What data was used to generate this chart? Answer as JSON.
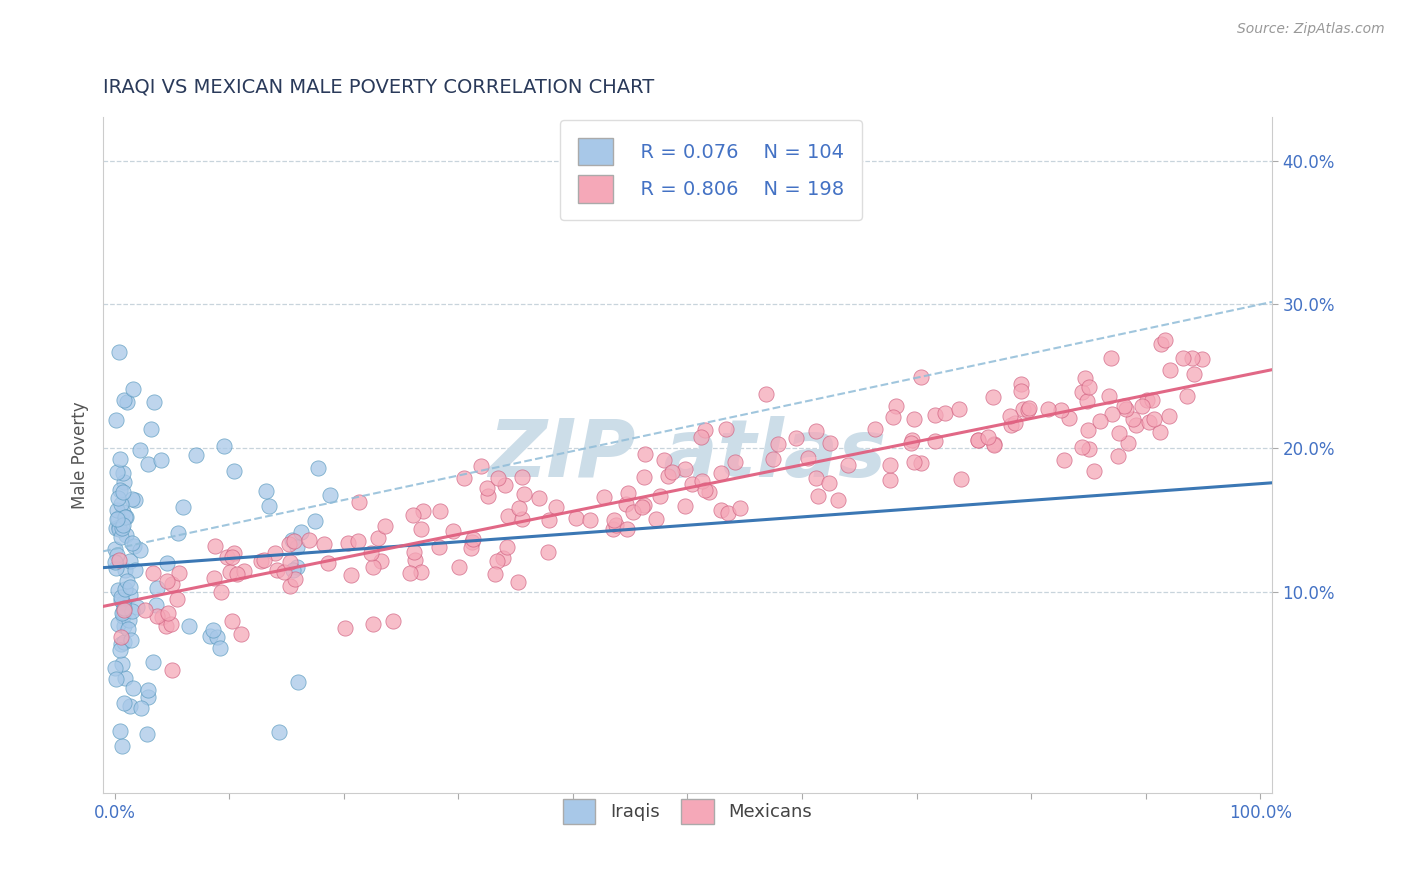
{
  "title": "IRAQI VS MEXICAN MALE POVERTY CORRELATION CHART",
  "source": "Source: ZipAtlas.com",
  "ylabel": "Male Poverty",
  "xlim": [
    -0.01,
    1.01
  ],
  "ylim": [
    -0.04,
    0.43
  ],
  "xtick_positions": [
    0.0,
    0.5,
    1.0
  ],
  "xtick_labels": [
    "0.0%",
    "",
    "100.0%"
  ],
  "ytick_positions": [
    0.1,
    0.2,
    0.3,
    0.4
  ],
  "ytick_labels": [
    "10.0%",
    "20.0%",
    "30.0%",
    "40.0%"
  ],
  "iraqi_R": 0.076,
  "iraqi_N": 104,
  "mexican_R": 0.806,
  "mexican_N": 198,
  "iraqi_color": "#a8c8e8",
  "mexican_color": "#f5a8b8",
  "iraqi_edge": "#5a9abf",
  "mexican_edge": "#d06080",
  "iraqi_trend_color": "#3070b0",
  "iraqi_dashed_color": "#90bcd8",
  "mexican_trend_color": "#e06080",
  "background_color": "#ffffff",
  "grid_color": "#c8d4dc",
  "title_color": "#2a3a5a",
  "watermark_color": "#ccdde8",
  "tick_color": "#4472c4",
  "legend_color": "#4472c4",
  "figsize": [
    14.06,
    8.92
  ],
  "dpi": 100
}
